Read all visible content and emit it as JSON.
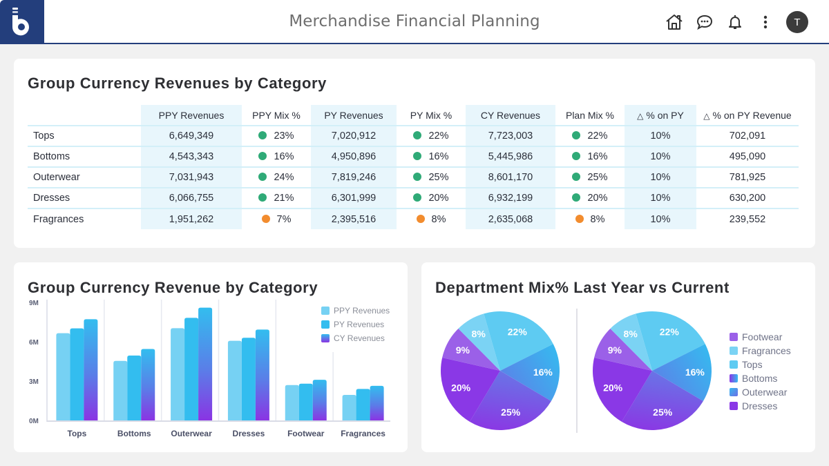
{
  "header": {
    "title": "Merchandise Financial Planning",
    "icons": [
      "home-icon",
      "chat-icon",
      "bell-icon",
      "more-vertical-icon"
    ],
    "avatar_initial": "T",
    "brand_color": "#233e7c"
  },
  "table_card": {
    "title": "Group Currency Revenues by Category",
    "columns": [
      "",
      "PPY Revenues",
      "PPY Mix %",
      "PY Revenues",
      "PY Mix %",
      "CY Revenues",
      "Plan Mix %",
      "% on PY",
      "% on PY Revenue"
    ],
    "delta_symbol": "△",
    "status_colors": {
      "green": "#2faa77",
      "orange": "#f28c2e"
    },
    "rows": [
      {
        "category": "Tops",
        "ppy_rev": "6,649,349",
        "ppy_mix": "23%",
        "ppy_mix_status": "green",
        "py_rev": "7,020,912",
        "py_mix": "22%",
        "py_mix_status": "green",
        "cy_rev": "7,723,003",
        "plan_mix": "22%",
        "plan_mix_status": "green",
        "pct_on_py": "10%",
        "pct_on_py_rev": "702,091"
      },
      {
        "category": "Bottoms",
        "ppy_rev": "4,543,343",
        "ppy_mix": "16%",
        "ppy_mix_status": "green",
        "py_rev": "4,950,896",
        "py_mix": "16%",
        "py_mix_status": "green",
        "cy_rev": "5,445,986",
        "plan_mix": "16%",
        "plan_mix_status": "green",
        "pct_on_py": "10%",
        "pct_on_py_rev": "495,090"
      },
      {
        "category": "Outerwear",
        "ppy_rev": "7,031,943",
        "ppy_mix": "24%",
        "ppy_mix_status": "green",
        "py_rev": "7,819,246",
        "py_mix": "25%",
        "py_mix_status": "green",
        "cy_rev": "8,601,170",
        "plan_mix": "25%",
        "plan_mix_status": "green",
        "pct_on_py": "10%",
        "pct_on_py_rev": "781,925"
      },
      {
        "category": "Dresses",
        "ppy_rev": "6,066,755",
        "ppy_mix": "21%",
        "ppy_mix_status": "green",
        "py_rev": "6,301,999",
        "py_mix": "20%",
        "py_mix_status": "green",
        "cy_rev": "6,932,199",
        "plan_mix": "20%",
        "plan_mix_status": "green",
        "pct_on_py": "10%",
        "pct_on_py_rev": "630,200"
      },
      {
        "category": "Fragrances",
        "ppy_rev": "1,951,262",
        "ppy_mix": "7%",
        "ppy_mix_status": "orange",
        "py_rev": "2,395,516",
        "py_mix": "8%",
        "py_mix_status": "orange",
        "cy_rev": "2,635,068",
        "plan_mix": "8%",
        "plan_mix_status": "orange",
        "pct_on_py": "10%",
        "pct_on_py_rev": "239,552"
      }
    ]
  },
  "bar_card": {
    "title": "Group Currency Revenue by Category"
  },
  "pie_card": {
    "title": "Department Mix% Last Year vs Current"
  },
  "chart_data": [
    {
      "type": "bar",
      "title": "Group Currency Revenue by Category",
      "xlabel": "",
      "ylabel": "",
      "ylim": [
        0,
        9
      ],
      "yunit": "M",
      "yticks": [
        "0M",
        "3M",
        "6M",
        "9M"
      ],
      "categories": [
        "Tops",
        "Bottoms",
        "Outerwear",
        "Dresses",
        "Footwear",
        "Fragrances"
      ],
      "series": [
        {
          "name": "PPY Revenues",
          "color": "#76d1f3",
          "values": [
            6.65,
            4.54,
            7.03,
            6.07,
            2.7,
            1.95
          ]
        },
        {
          "name": "PY Revenues",
          "color": "#33bdef",
          "values": [
            7.02,
            4.95,
            7.82,
            6.3,
            2.8,
            2.4
          ]
        },
        {
          "name": "CY Revenues",
          "color": "gradient:#33bdef-#8a34e3",
          "values": [
            7.72,
            5.45,
            8.6,
            6.93,
            3.1,
            2.64
          ]
        }
      ],
      "legend": "top-right",
      "grid": "vertical-category-separators"
    },
    {
      "type": "pie",
      "title": "Department Mix% Last Year",
      "slices": [
        {
          "label": "Tops",
          "value": 22,
          "color": "#5ecbf2"
        },
        {
          "label": "Bottoms",
          "value": 16,
          "color": "gradient:#36b9ef-#5b86e8"
        },
        {
          "label": "Outerwear",
          "value": 25,
          "color": "gradient:#6b6ee6-#8a3ce6"
        },
        {
          "label": "Dresses",
          "value": 20,
          "color": "#8a38e6"
        },
        {
          "label": "Footwear",
          "value": 9,
          "color": "#9b5fe9"
        },
        {
          "label": "Fragrances",
          "value": 8,
          "color": "#7bd3f4"
        }
      ]
    },
    {
      "type": "pie",
      "title": "Department Mix% Current",
      "slices": [
        {
          "label": "Tops",
          "value": 22,
          "color": "#5ecbf2"
        },
        {
          "label": "Bottoms",
          "value": 16,
          "color": "gradient:#36b9ef-#5b86e8"
        },
        {
          "label": "Outerwear",
          "value": 25,
          "color": "gradient:#6b6ee6-#8a3ce6"
        },
        {
          "label": "Dresses",
          "value": 20,
          "color": "#8a38e6"
        },
        {
          "label": "Footwear",
          "value": 9,
          "color": "#9b5fe9"
        },
        {
          "label": "Fragrances",
          "value": 8,
          "color": "#7bd3f4"
        }
      ],
      "legend": [
        "Footwear",
        "Fragrances",
        "Tops",
        "Bottoms",
        "Outerwear",
        "Dresses"
      ],
      "legend_placement": "right"
    }
  ]
}
